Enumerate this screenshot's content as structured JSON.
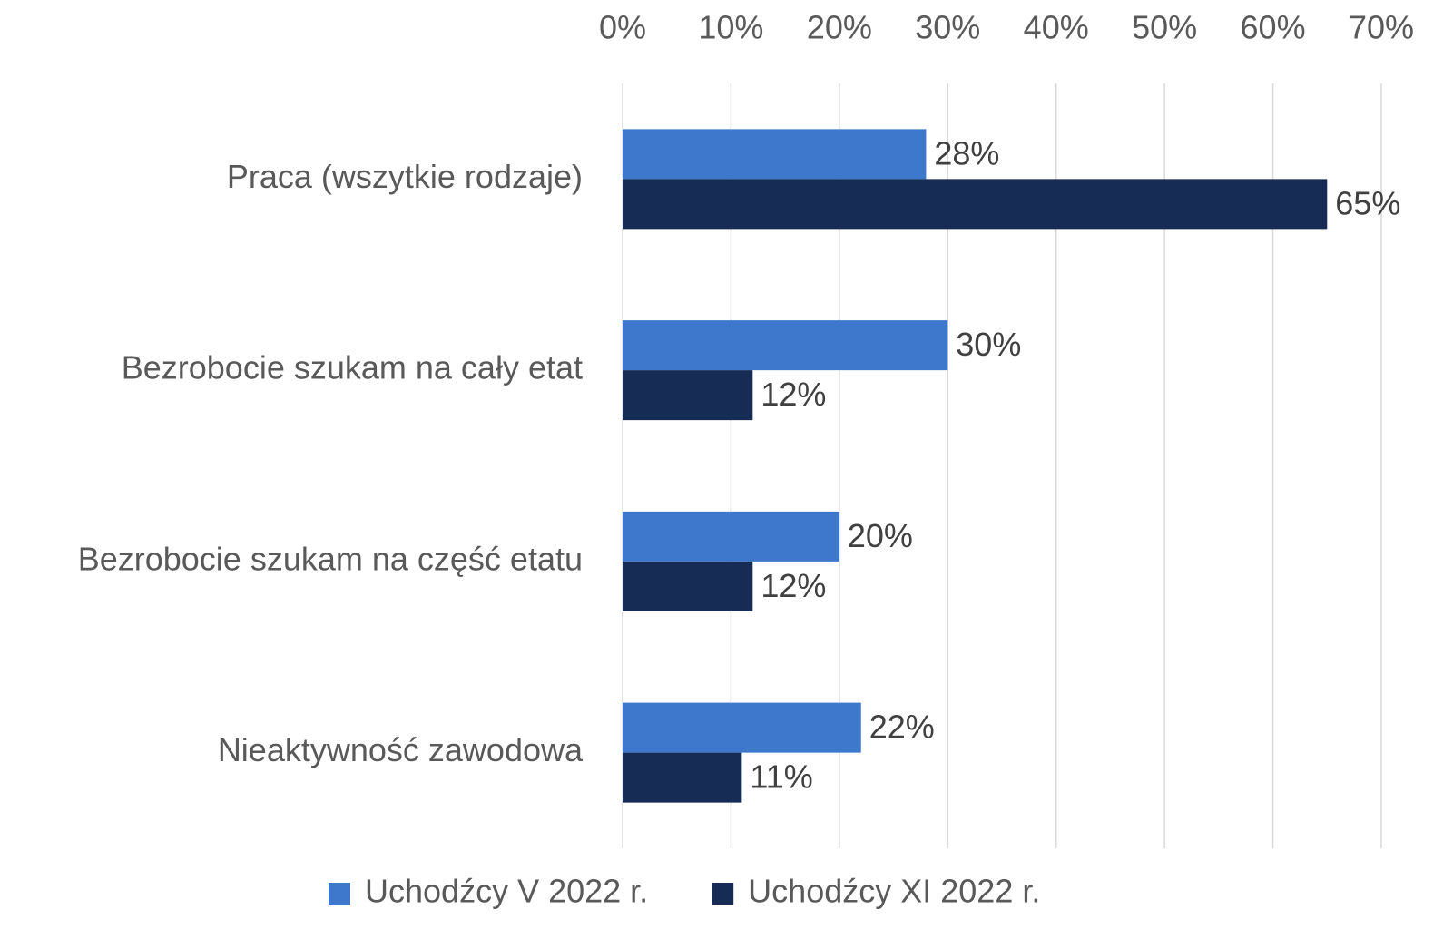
{
  "chart_data": {
    "type": "hbar",
    "categories": [
      "Praca (wszytkie rodzaje)",
      "Bezrobocie szukam na cały etat",
      "Bezrobocie szukam na część etatu",
      "Nieaktywność zawodowa"
    ],
    "series": [
      {
        "name": "Uchodźcy V 2022 r.",
        "color": "#3d78cc",
        "values": [
          28,
          30,
          20,
          22
        ],
        "value_labels": [
          "28%",
          "30%",
          "20%",
          "22%"
        ]
      },
      {
        "name": "Uchodźcy XI 2022 r.",
        "color": "#172c54",
        "values": [
          65,
          12,
          12,
          11
        ],
        "value_labels": [
          "65%",
          "12%",
          "12%",
          "11%"
        ]
      }
    ],
    "xlim": [
      0,
      70
    ],
    "xticks": [
      {
        "value": 0,
        "label": "0%"
      },
      {
        "value": 10,
        "label": "10%"
      },
      {
        "value": 20,
        "label": "20%"
      },
      {
        "value": 30,
        "label": "30%"
      },
      {
        "value": 40,
        "label": "40%"
      },
      {
        "value": 50,
        "label": "50%"
      },
      {
        "value": 60,
        "label": "60%"
      },
      {
        "value": 70,
        "label": "70%"
      }
    ],
    "grid": true,
    "legend": "bottom"
  }
}
